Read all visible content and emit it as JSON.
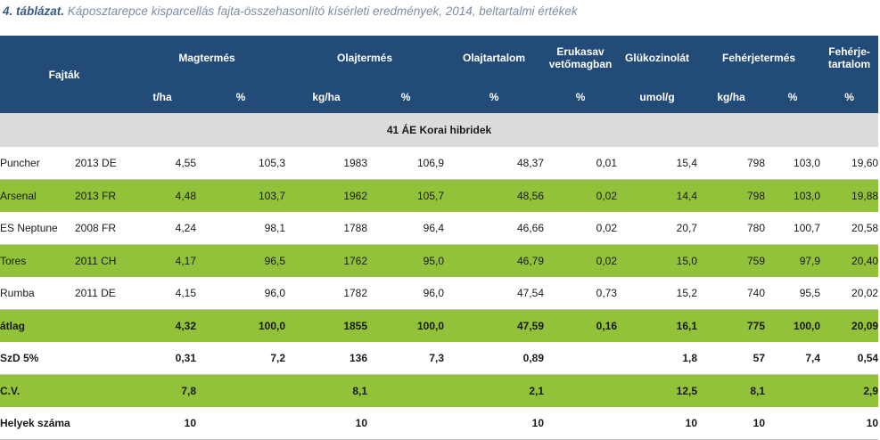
{
  "caption": {
    "number": "4. táblázat.",
    "text": "Káposztarepce kisparcellás fajta-összehasonlító kísérleti eredmények, 2014, beltartalmi értékek"
  },
  "header": {
    "fajtak": "Fajták",
    "magtermes": "Magtermés",
    "olajtermes": "Olajtermés",
    "olajtartalom": "Olajtartalom",
    "erukasav_1": "Erukasav",
    "erukasav_2": "vetőmagban",
    "glukozinolat": "Glükozinolát",
    "feherjetermes": "Fehérjetermés",
    "feherjetartalom_1": "Fehérje-",
    "feherjetartalom_2": "tartalom",
    "units": [
      "t/ha",
      "%",
      "kg/ha",
      "%",
      "%",
      "%",
      "umol/g",
      "kg/ha",
      "%",
      "%"
    ]
  },
  "group_label": "41  ÁE Korai hibridek",
  "rows": [
    {
      "name": "Puncher",
      "year": "2013 DE",
      "vals": [
        "4,55",
        "105,3",
        "1983",
        "106,9",
        "48,37",
        "0,01",
        "15,4",
        "798",
        "103,0",
        "19,60"
      ]
    },
    {
      "name": "Arsenal",
      "year": "2013 FR",
      "vals": [
        "4,48",
        "103,7",
        "1962",
        "105,7",
        "48,56",
        "0,02",
        "14,4",
        "798",
        "103,0",
        "19,88"
      ]
    },
    {
      "name": "ES Neptune",
      "year": "2008 FR",
      "vals": [
        "4,24",
        "98,1",
        "1788",
        "96,4",
        "46,66",
        "0,02",
        "20,7",
        "780",
        "100,7",
        "20,58"
      ]
    },
    {
      "name": "Tores",
      "year": "2011 CH",
      "vals": [
        "4,17",
        "96,5",
        "1762",
        "95,0",
        "46,79",
        "0,02",
        "15,0",
        "759",
        "97,9",
        "20,40"
      ]
    },
    {
      "name": "Rumba",
      "year": "2011 DE",
      "vals": [
        "4,15",
        "96,0",
        "1782",
        "96,0",
        "47,54",
        "0,73",
        "15,2",
        "740",
        "95,5",
        "20,02"
      ]
    }
  ],
  "summary": [
    {
      "name": "átlag",
      "vals": [
        "4,32",
        "100,0",
        "1855",
        "100,0",
        "47,59",
        "0,16",
        "16,1",
        "775",
        "100,0",
        "20,09"
      ]
    },
    {
      "name": "SzD 5%",
      "vals": [
        "0,31",
        "7,2",
        "136",
        "7,3",
        "0,89",
        "",
        "1,8",
        "57",
        "7,4",
        "0,54"
      ]
    },
    {
      "name": "C.V.",
      "vals": [
        "7,8",
        "",
        "8,1",
        "",
        "2,1",
        "",
        "12,5",
        "8,1",
        "",
        "2,9"
      ]
    },
    {
      "name": "Helyek száma",
      "vals": [
        "10",
        "",
        "10",
        "",
        "10",
        "",
        "10",
        "10",
        "",
        "10"
      ]
    }
  ]
}
